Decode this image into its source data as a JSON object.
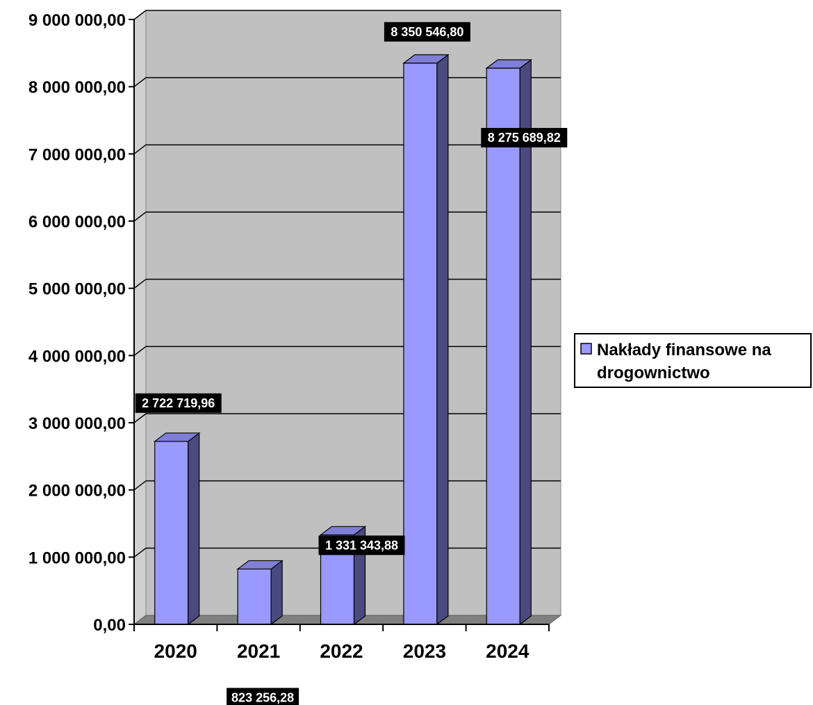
{
  "chart_data": {
    "type": "bar",
    "style": "3d-column",
    "categories": [
      "2020",
      "2021",
      "2022",
      "2023",
      "2024"
    ],
    "series": [
      {
        "name": "Nakłady finansowe na drogownictwo",
        "values": [
          2722719.96,
          823256.28,
          1331343.88,
          8350546.8,
          8275689.82
        ],
        "data_labels": [
          "2 722 719,96",
          "823 256,28",
          "1 331 343,88",
          "8 350 546,80",
          "8 275 689,82"
        ]
      }
    ],
    "title": "",
    "xlabel": "",
    "ylabel": "",
    "ylim": [
      0,
      9000000
    ],
    "yticks": [
      0,
      1000000,
      2000000,
      3000000,
      4000000,
      5000000,
      6000000,
      7000000,
      8000000,
      9000000
    ],
    "ytick_labels": [
      "0,00",
      "1 000 000,00",
      "2 000 000,00",
      "3 000 000,00",
      "4 000 000,00",
      "5 000 000,00",
      "6 000 000,00",
      "7 000 000,00",
      "8 000 000,00",
      "9 000 000,00"
    ],
    "grid": true,
    "legend": {
      "position": "right",
      "lines": [
        "Nakłady finansowe na",
        "drogownictwo"
      ]
    },
    "colors": {
      "bar_front": "#9999ff",
      "bar_side": "#4a4a7e",
      "bar_top": "#7f7fd6",
      "plot_wall": "#c0c0c0",
      "floor": "#808080",
      "label_bg": "#000000"
    }
  }
}
